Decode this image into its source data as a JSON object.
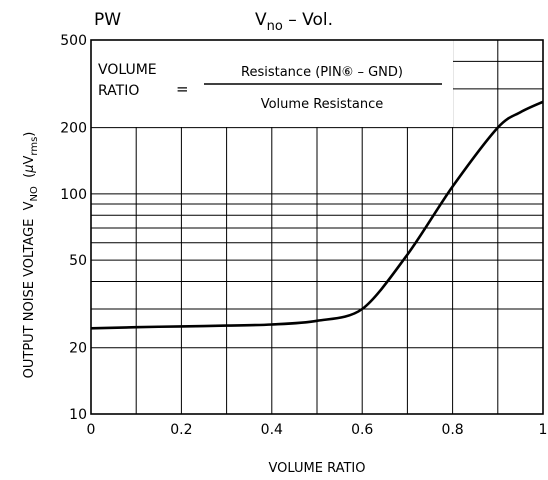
{
  "chart_data": {
    "type": "line",
    "tag": "PW",
    "title": {
      "main": "V",
      "sub": "no",
      "rest": " – Vol."
    },
    "formula": {
      "lhs": [
        "VOLUME",
        "RATIO"
      ],
      "eq": "=",
      "numerator": "Resistance (PIN⑥ – GND)",
      "denominator": "Volume Resistance"
    },
    "xlabel": "VOLUME RATIO",
    "ylabel": {
      "text": "OUTPUT NOISE VOLTAGE  V",
      "sub": "NO",
      "unit_open": "  (",
      "mu": "μ",
      "unit": "V",
      "unit_sub": "rms",
      "unit_close": ")"
    },
    "x_ticks": [
      "0",
      "0.2",
      "0.4",
      "0.6",
      "0.8",
      "1"
    ],
    "y_ticks": [
      "10",
      "20",
      "50",
      "100",
      "200",
      "500"
    ],
    "xlim": [
      0,
      1
    ],
    "ylim": [
      10,
      500
    ],
    "y_scale": "log",
    "grid": true,
    "series": [
      {
        "x": [
          0,
          0.1,
          0.2,
          0.3,
          0.4,
          0.5,
          0.6,
          0.7,
          0.8,
          0.9,
          0.95,
          1.0
        ],
        "y": [
          24.5,
          24.8,
          25.0,
          25.2,
          25.5,
          26.5,
          30,
          53,
          108,
          200,
          235,
          262
        ]
      }
    ]
  }
}
